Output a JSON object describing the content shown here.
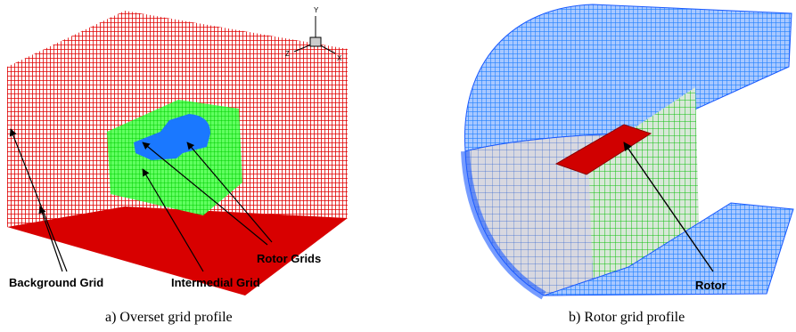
{
  "panel_a": {
    "axes": {
      "y": "Y",
      "z": "Z",
      "x": "X"
    },
    "labels": [
      "Background Grid",
      "Intermedial Grid",
      "Rotor Grids"
    ],
    "caption": "a) Overset grid profile"
  },
  "panel_b": {
    "labels": [
      "Rotor"
    ],
    "caption": "b) Rotor grid profile"
  }
}
